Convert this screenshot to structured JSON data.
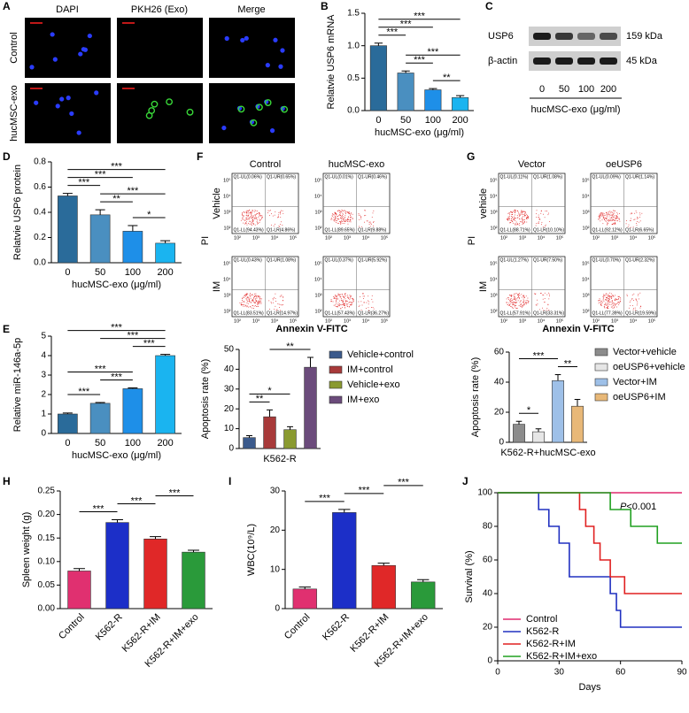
{
  "panel_labels": [
    "A",
    "B",
    "C",
    "D",
    "E",
    "F",
    "G",
    "H",
    "I",
    "J"
  ],
  "microscopy": {
    "columns": [
      "DAPI",
      "PKH26 (Exo)",
      "Merge"
    ],
    "rows": [
      "Control",
      "hucMSC-exo"
    ]
  },
  "blot": {
    "bands": [
      "USP6",
      "β-actin"
    ],
    "sizes": [
      "159 kDa",
      "45 kDa"
    ],
    "lanes": [
      "0",
      "50",
      "100",
      "200"
    ],
    "xlabel": "hucMSC-exo (μg/ml)"
  },
  "flow_ylabel": "PI",
  "flow_xlabel": "Annexin V-FITC",
  "flow_ticks": [
    "10²",
    "10³",
    "10⁴",
    "10⁵"
  ],
  "flow": [
    {
      "columns": [
        "Control",
        "hucMSC-exo"
      ],
      "rows": [
        "Vehicle",
        "IM"
      ],
      "quadrants": [
        [
          [
            "Q1-UL(0.06%)",
            "Q1-UR(0.65%)",
            "Q1-LL(94.43%)",
            "Q1-LR(4.86%)"
          ],
          [
            "Q1-UL(0.01%)",
            "Q1-UR(0.46%)",
            "Q1-LL(89.65%)",
            "Q1-LR(9.88%)"
          ]
        ],
        [
          [
            "Q1-UL(0.43%)",
            "Q1-UR(1.08%)",
            "Q1-LL(83.51%)",
            "Q1-LR(14.97%)"
          ],
          [
            "Q1-UL(0.37%)",
            "Q1-UR(5.92%)",
            "Q1-LL(57.43%)",
            "Q1-LR(36.27%)"
          ]
        ]
      ]
    },
    {
      "columns": [
        "Vector",
        "oeUSP6"
      ],
      "rows": [
        "vehicle",
        "IM"
      ],
      "quadrants": [
        [
          [
            "Q1-UL(0.11%)",
            "Q1-UR(1.08%)",
            "Q1-LL(88.71%)",
            "Q1-LR(10.10%)"
          ],
          [
            "Q1-UL(0.09%)",
            "Q1-UR(1.14%)",
            "Q1-LL(92.12%)",
            "Q1-LR(6.65%)"
          ]
        ],
        [
          [
            "Q1-UL(1.27%)",
            "Q1-UR(7.50%)",
            "Q1-LL(57.91%)",
            "Q1-LR(33.31%)"
          ],
          [
            "Q1-UL(0.70%)",
            "Q1-UR(2.32%)",
            "Q1-LL(77.39%)",
            "Q1-LR(19.59%)"
          ]
        ]
      ]
    }
  ],
  "chart_data": [
    {
      "type": "bar",
      "ylabel": "Relatvie USP6 mRNA",
      "xlabel": "hucMSC-exo (μg/ml)",
      "categories": [
        "0",
        "50",
        "100",
        "200"
      ],
      "values": [
        1.0,
        0.58,
        0.32,
        0.2
      ],
      "errors": [
        0.04,
        0.03,
        0.02,
        0.03
      ],
      "colors": [
        "#2a6b9a",
        "#4a8fc0",
        "#1e8fe8",
        "#1ab4f0"
      ],
      "ylim": [
        0,
        1.5
      ],
      "yticks": [
        {
          "value": 0,
          "label": "0.0"
        },
        0.5,
        {
          "value": 1,
          "label": "1.0"
        },
        1.5
      ],
      "significance": [
        {
          "pair": [
            2,
            3
          ],
          "label": "**"
        },
        {
          "pair": [
            1,
            2
          ],
          "label": "***"
        },
        {
          "pair": [
            1,
            3
          ],
          "label": "***"
        },
        {
          "pair": [
            0,
            1
          ],
          "label": "***"
        },
        {
          "pair": [
            0,
            2
          ],
          "label": "***"
        },
        {
          "pair": [
            0,
            3
          ],
          "label": "***"
        }
      ]
    },
    {
      "type": "bar",
      "ylabel": "Relatvie USP6 protein",
      "xlabel": "hucMSC-exo (μg/ml)",
      "categories": [
        "0",
        "50",
        "100",
        "200"
      ],
      "values": [
        0.53,
        0.38,
        0.25,
        0.155
      ],
      "errors": [
        0.02,
        0.04,
        0.045,
        0.02
      ],
      "colors": [
        "#2a6b9a",
        "#4a8fc0",
        "#1e8fe8",
        "#1ab4f0"
      ],
      "ylim": [
        0,
        0.8
      ],
      "yticks": [
        {
          "value": 0,
          "label": "0.0"
        },
        0.2,
        0.4,
        0.6,
        0.8
      ],
      "significance": [
        {
          "pair": [
            2,
            3
          ],
          "label": "*"
        },
        {
          "pair": [
            1,
            2
          ],
          "label": "**"
        },
        {
          "pair": [
            1,
            3
          ],
          "label": "***"
        },
        {
          "pair": [
            0,
            1
          ],
          "label": "***"
        },
        {
          "pair": [
            0,
            2
          ],
          "label": "***"
        },
        {
          "pair": [
            0,
            3
          ],
          "label": "***"
        }
      ]
    },
    {
      "type": "bar",
      "ylabel": "Relative miR-146a-5p",
      "xlabel": "hucMSC-exo (μg/ml)",
      "categories": [
        "0",
        "50",
        "100",
        "200"
      ],
      "values": [
        1.0,
        1.55,
        2.3,
        4.0
      ],
      "errors": [
        0.05,
        0.04,
        0.04,
        0.06
      ],
      "colors": [
        "#2a6b9a",
        "#4a8fc0",
        "#1e8fe8",
        "#1ab4f0"
      ],
      "ylim": [
        0,
        5
      ],
      "yticks": [
        0,
        1,
        2,
        3,
        4,
        5
      ],
      "significance": [
        {
          "pair": [
            0,
            1
          ],
          "label": "***"
        },
        {
          "pair": [
            1,
            2
          ],
          "label": "***"
        },
        {
          "pair": [
            0,
            2
          ],
          "label": "***"
        },
        {
          "pair": [
            2,
            3
          ],
          "label": "***"
        },
        {
          "pair": [
            1,
            3
          ],
          "label": "***"
        },
        {
          "pair": [
            0,
            3
          ],
          "label": "***"
        }
      ]
    },
    {
      "type": "bar",
      "ylabel": "Apoptosis rate (%)",
      "categories": [
        "K562-R"
      ],
      "series": [
        {
          "name": "Vehicle+control",
          "color": "#3b5a8c",
          "values": [
            5.5
          ],
          "errors": [
            1
          ]
        },
        {
          "name": "IM+control",
          "color": "#a83a3a",
          "values": [
            16
          ],
          "errors": [
            3.5
          ]
        },
        {
          "name": "Vehicle+exo",
          "color": "#8a9a30",
          "values": [
            9.5
          ],
          "errors": [
            1.5
          ]
        },
        {
          "name": "IM+exo",
          "color": "#6b4b7b",
          "values": [
            41
          ],
          "errors": [
            5
          ]
        }
      ],
      "ylim": [
        0,
        50
      ],
      "yticks": [
        0,
        10,
        20,
        30,
        40,
        50
      ],
      "significance": [
        {
          "pair": [
            0,
            1
          ],
          "label": "**"
        },
        {
          "pair": [
            0,
            2
          ],
          "label": "*"
        },
        {
          "pair": [
            1,
            3
          ],
          "label": "**"
        }
      ]
    },
    {
      "type": "bar",
      "ylabel": "Apoptosis rate (%)",
      "categories": [
        "K562-R+hucMSC-exo"
      ],
      "series": [
        {
          "name": "Vector+vehicle",
          "color": "#8c8c8c",
          "values": [
            12
          ],
          "errors": [
            2
          ]
        },
        {
          "name": "oeUSP6+vehicle",
          "color": "#e6e6e6",
          "values": [
            7
          ],
          "errors": [
            2
          ]
        },
        {
          "name": "Vector+IM",
          "color": "#9ec0e8",
          "values": [
            41
          ],
          "errors": [
            4
          ]
        },
        {
          "name": "oeUSP6+IM",
          "color": "#e8b878",
          "values": [
            24
          ],
          "errors": [
            4.5
          ]
        }
      ],
      "ylim": [
        0,
        60
      ],
      "yticks": [
        0,
        20,
        40,
        60
      ],
      "significance": [
        {
          "pair": [
            0,
            1
          ],
          "label": "*"
        },
        {
          "pair": [
            2,
            3
          ],
          "label": "**"
        },
        {
          "pair": [
            0,
            2
          ],
          "label": "***"
        }
      ]
    },
    {
      "type": "bar",
      "ylabel": "Spleen weight (g)",
      "categories": [
        "Control",
        "K562-R",
        "K562-R+IM",
        "K562-R+IM+exo"
      ],
      "values": [
        0.08,
        0.183,
        0.148,
        0.12
      ],
      "errors": [
        0.005,
        0.006,
        0.005,
        0.004
      ],
      "colors": [
        "#e03070",
        "#1c2fc8",
        "#e02828",
        "#2a9a3a"
      ],
      "ylim": [
        0,
        0.25
      ],
      "yticks": [
        {
          "value": 0,
          "label": "0.00"
        },
        {
          "value": 0.05,
          "label": "0.05"
        },
        {
          "value": 0.1,
          "label": "0.10"
        },
        {
          "value": 0.15,
          "label": "0.15"
        },
        {
          "value": 0.2,
          "label": "0.20"
        },
        {
          "value": 0.25,
          "label": "0.25"
        }
      ],
      "significance": [
        {
          "pair": [
            0,
            1
          ],
          "label": "***"
        },
        {
          "pair": [
            1,
            2
          ],
          "label": "***"
        },
        {
          "pair": [
            2,
            3
          ],
          "label": "***"
        }
      ]
    },
    {
      "type": "bar",
      "ylabel": "WBC(10⁹/L)",
      "categories": [
        "Control",
        "K562-R",
        "K562-R+IM",
        "K562-R+IM+exo"
      ],
      "values": [
        5,
        24.5,
        11,
        6.8
      ],
      "errors": [
        0.5,
        0.8,
        0.6,
        0.6
      ],
      "colors": [
        "#e03070",
        "#1c2fc8",
        "#e02828",
        "#2a9a3a"
      ],
      "ylim": [
        0,
        30
      ],
      "yticks": [
        0,
        10,
        20,
        30
      ],
      "significance": [
        {
          "pair": [
            0,
            1
          ],
          "label": "***"
        },
        {
          "pair": [
            1,
            2
          ],
          "label": "***"
        },
        {
          "pair": [
            2,
            3
          ],
          "label": "***"
        }
      ]
    },
    {
      "type": "line",
      "step": true,
      "ylabel": "Survival (%)",
      "xlabel": "Days",
      "annotation": {
        "italic": "P",
        "rest": "<0.001"
      },
      "xlim": [
        0,
        90
      ],
      "xticks": [
        0,
        30,
        60,
        90
      ],
      "ylim": [
        0,
        100
      ],
      "yticks": [
        0,
        20,
        40,
        60,
        80,
        100
      ],
      "legend": "lower left",
      "series": [
        {
          "name": "Control",
          "color": "#e0286e",
          "x": [
            0,
            90
          ],
          "values": [
            100,
            100
          ]
        },
        {
          "name": "K562-R",
          "color": "#2030c0",
          "x": [
            0,
            20,
            25,
            30,
            35,
            55,
            58,
            60,
            90
          ],
          "values": [
            100,
            90,
            80,
            70,
            50,
            40,
            30,
            20,
            20
          ]
        },
        {
          "name": "K562-R+IM",
          "color": "#e02020",
          "x": [
            0,
            40,
            43,
            47,
            50,
            55,
            62,
            90
          ],
          "values": [
            100,
            90,
            80,
            70,
            60,
            50,
            40,
            40
          ]
        },
        {
          "name": "K562-R+IM+exo",
          "color": "#20a020",
          "x": [
            0,
            55,
            65,
            78,
            90
          ],
          "values": [
            100,
            90,
            80,
            70,
            70
          ]
        }
      ]
    }
  ]
}
